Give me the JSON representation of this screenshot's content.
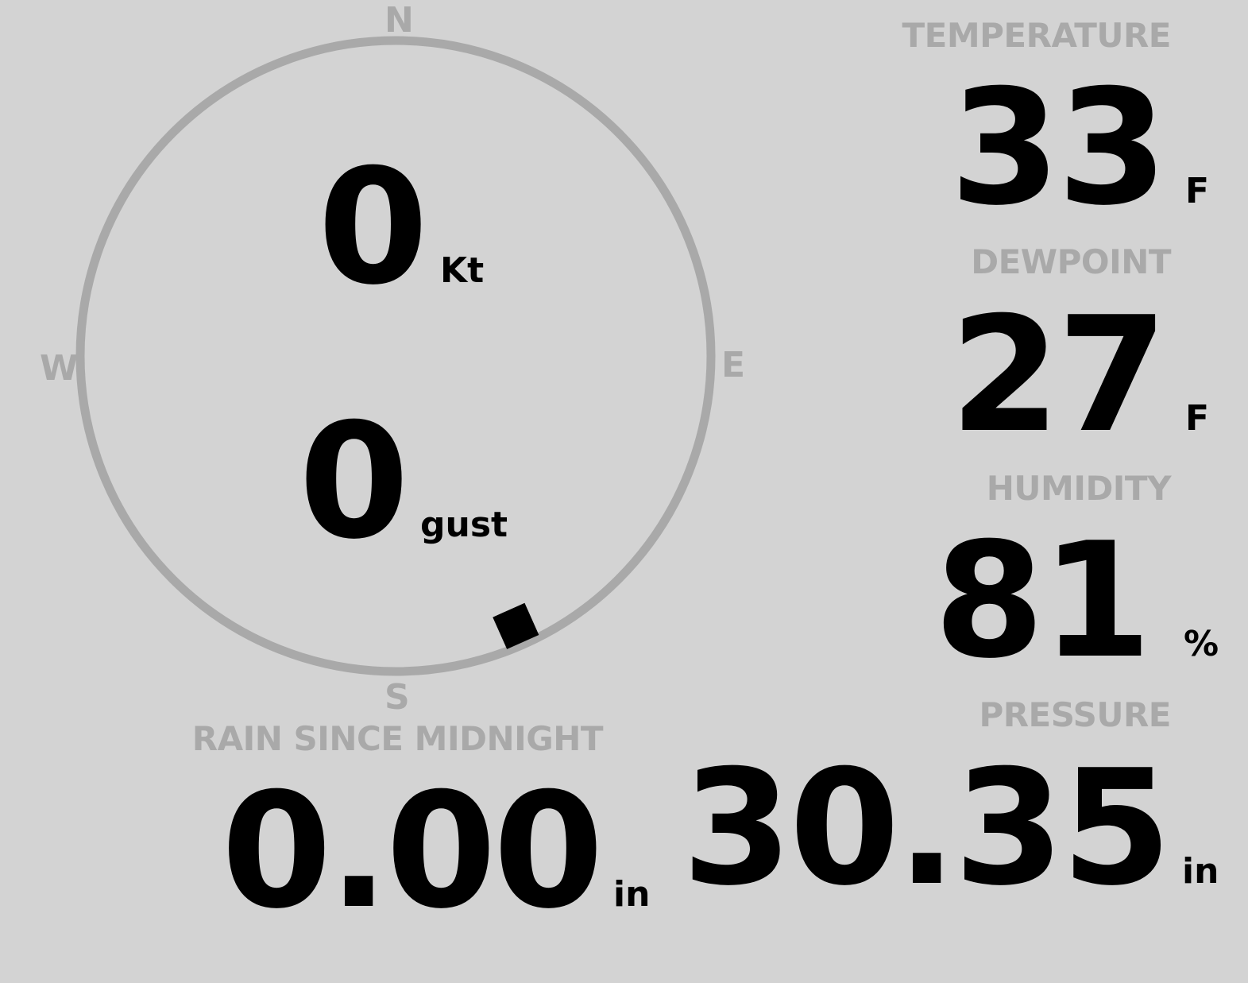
{
  "wind": {
    "speed": "0",
    "speed_unit": "Kt",
    "gust": "0",
    "gust_unit": "gust",
    "direction_deg": 156,
    "compass": {
      "n": "N",
      "e": "E",
      "s": "S",
      "w": "W"
    }
  },
  "temperature": {
    "label": "TEMPERATURE",
    "value": "33",
    "unit": "F"
  },
  "dewpoint": {
    "label": "DEWPOINT",
    "value": "27",
    "unit": "F"
  },
  "humidity": {
    "label": "HUMIDITY",
    "value": "81",
    "unit": "%"
  },
  "pressure": {
    "label": "PRESSURE",
    "value": "30.35",
    "unit": "in"
  },
  "rain": {
    "label": "RAIN SINCE MIDNIGHT",
    "value": "0.00",
    "unit": "in"
  },
  "colors": {
    "background": "#d3d3d3",
    "label": "#a9a9a9",
    "value": "#000000",
    "ring": "#a9a9a9"
  }
}
